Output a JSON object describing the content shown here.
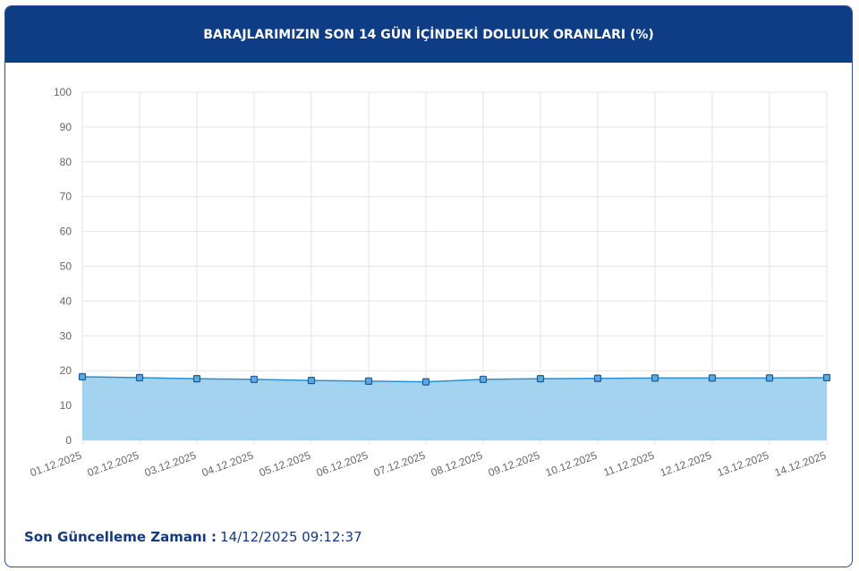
{
  "chart_data": {
    "type": "line",
    "title": "BARAJLARIMIZIN SON 14 GÜN İÇİNDEKİ DOLULUK ORANLARI (%)",
    "categories": [
      "01.12.2025",
      "02.12.2025",
      "03.12.2025",
      "04.12.2025",
      "05.12.2025",
      "06.12.2025",
      "07.12.2025",
      "08.12.2025",
      "09.12.2025",
      "10.12.2025",
      "11.12.2025",
      "12.12.2025",
      "13.12.2025",
      "14.12.2025"
    ],
    "series": [
      {
        "color": "#2b8fd3",
        "values": [
          18.25,
          18.0,
          17.7,
          17.5,
          17.2,
          17.0,
          16.8,
          17.5,
          17.7,
          17.8,
          17.9,
          17.9,
          17.9,
          18.0
        ]
      }
    ],
    "area_color": "#9fd1ef",
    "ylim": [
      0,
      100
    ],
    "yticks": [
      0,
      10,
      20,
      30,
      40,
      50,
      60,
      70,
      80,
      90,
      100
    ],
    "grid": true
  },
  "footer": {
    "label": "Son Güncelleme Zamanı :",
    "value": "14/12/2025 09:12:37"
  }
}
